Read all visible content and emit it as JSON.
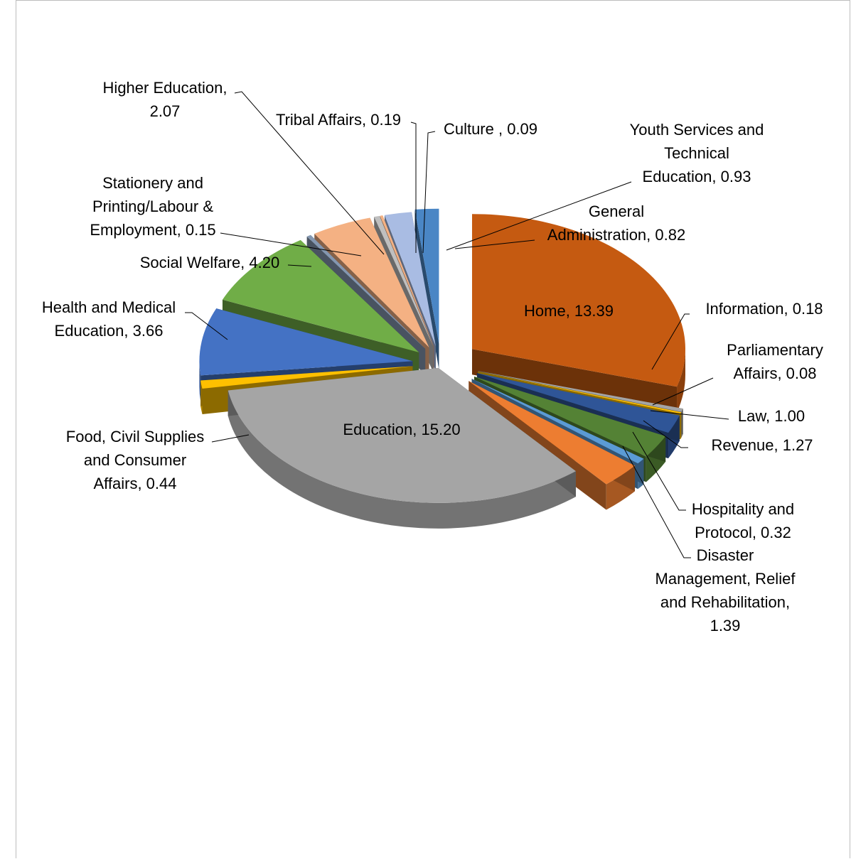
{
  "chart_data": {
    "type": "pie",
    "title": "",
    "style": "3d-exploded",
    "legend": "none",
    "data_labels": "category-and-value",
    "slices": [
      {
        "name": "Home",
        "value": 13.39,
        "color": "#C55A11",
        "label_lines": [
          "Home, 13.39"
        ]
      },
      {
        "name": "Information",
        "value": 0.18,
        "color": "#A5A5A5",
        "label_lines": [
          "Information, 0.18"
        ]
      },
      {
        "name": "Parliamentary Affairs",
        "value": 0.08,
        "color": "#FFC000",
        "label_lines": [
          "Parliamentary",
          "Affairs, 0.08"
        ]
      },
      {
        "name": "Law",
        "value": 1.0,
        "color": "#2F5597",
        "label_lines": [
          "Law, 1.00"
        ]
      },
      {
        "name": "Revenue",
        "value": 1.27,
        "color": "#548235",
        "label_lines": [
          "Revenue, 1.27"
        ]
      },
      {
        "name": "Hospitality and Protocol",
        "value": 0.32,
        "color": "#5B9BD5",
        "label_lines": [
          "Hospitality and",
          "Protocol, 0.32"
        ]
      },
      {
        "name": "Disaster Management, Relief and Rehabilitation",
        "value": 1.39,
        "color": "#ED7D31",
        "label_lines": [
          "Disaster",
          "Management, Relief",
          "and Rehabilitation,",
          "1.39"
        ]
      },
      {
        "name": "Education",
        "value": 15.2,
        "color": "#A5A5A5",
        "label_lines": [
          "Education, 15.20"
        ]
      },
      {
        "name": "Food, Civil Supplies and Consumer Affairs",
        "value": 0.44,
        "color": "#FFC000",
        "label_lines": [
          "Food, Civil Supplies",
          "and Consumer",
          "Affairs, 0.44"
        ]
      },
      {
        "name": "Health and Medical Education",
        "value": 3.66,
        "color": "#4472C4",
        "label_lines": [
          "Health and Medical",
          "Education, 3.66"
        ]
      },
      {
        "name": "Social Welfare",
        "value": 4.2,
        "color": "#70AD47",
        "label_lines": [
          "Social Welfare, 4.20"
        ]
      },
      {
        "name": "Stationery and Printing/Labour & Employment",
        "value": 0.15,
        "color": "#8497B0",
        "label_lines": [
          "Stationery and",
          "Printing/Labour &",
          "Employment, 0.15"
        ]
      },
      {
        "name": "Higher Education",
        "value": 2.07,
        "color": "#F4B183",
        "label_lines": [
          "Higher Education,",
          "2.07"
        ]
      },
      {
        "name": "Tribal Affairs",
        "value": 0.19,
        "color": "#BFBFBF",
        "label_lines": [
          "Tribal Affairs, 0.19"
        ]
      },
      {
        "name": "Culture",
        "value": 0.09,
        "color": "#F4B183",
        "label_lines": [
          "Culture , 0.09"
        ]
      },
      {
        "name": "Youth Services and Technical Education",
        "value": 0.93,
        "color": "#A9BCE3",
        "label_lines": [
          "Youth Services and",
          "Technical",
          "Education, 0.93"
        ]
      },
      {
        "name": "General Administration",
        "value": 0.82,
        "color": "#4A86C5",
        "label_lines": [
          "General",
          "Administration, 0.82"
        ]
      }
    ]
  }
}
